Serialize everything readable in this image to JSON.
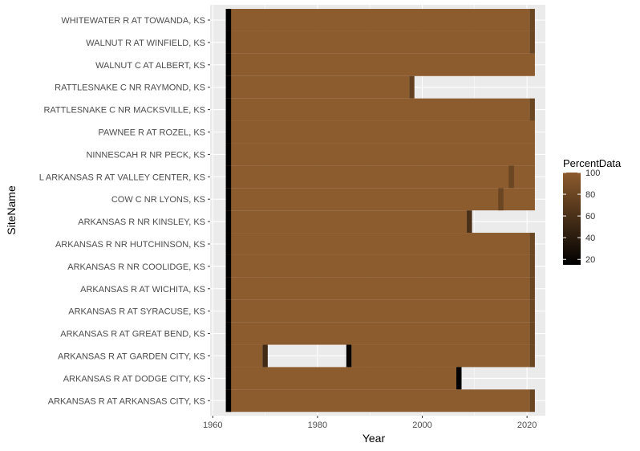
{
  "chart_data": {
    "type": "heatmap",
    "xlabel": "Year",
    "ylabel": "SiteName",
    "xlim": [
      1959.5,
      2023.5
    ],
    "xticks": [
      1960,
      1980,
      2000,
      2020
    ],
    "grid": true,
    "legend": {
      "title": "PercentData",
      "placement": "right",
      "ticks": [
        100,
        80,
        60,
        40,
        20
      ],
      "range": [
        15,
        100
      ]
    },
    "color_scale": {
      "low": "#000000",
      "high": "#8c5b2e"
    },
    "sites": [
      "WHITEWATER R AT TOWANDA, KS",
      "WALNUT R AT WINFIELD, KS",
      "WALNUT C AT ALBERT, KS",
      "RATTLESNAKE C NR RAYMOND, KS",
      "RATTLESNAKE C NR MACKSVILLE, KS",
      "PAWNEE R AT ROZEL, KS",
      "NINNESCAH R NR PECK, KS",
      "L ARKANSAS R AT VALLEY CENTER, KS",
      "COW C NR LYONS, KS",
      "ARKANSAS R NR KINSLEY, KS",
      "ARKANSAS R NR HUTCHINSON, KS",
      "ARKANSAS R NR COOLIDGE, KS",
      "ARKANSAS R AT WICHITA, KS",
      "ARKANSAS R AT SYRACUSE, KS",
      "ARKANSAS R AT GREAT BEND, KS",
      "ARKANSAS R AT GARDEN CITY, KS",
      "ARKANSAS R AT DODGE CITY, KS",
      "ARKANSAS R AT ARKANSAS CITY, KS"
    ],
    "series": [
      {
        "segments": [
          {
            "start": 1963,
            "end": 2020,
            "value": 100
          }
        ],
        "cells": [
          {
            "year": 1963,
            "value": 15
          },
          {
            "year": 2021,
            "value": 80
          }
        ]
      },
      {
        "segments": [
          {
            "start": 1963,
            "end": 2020,
            "value": 100
          }
        ],
        "cells": [
          {
            "year": 1963,
            "value": 15
          },
          {
            "year": 2021,
            "value": 80
          }
        ]
      },
      {
        "segments": [
          {
            "start": 1963,
            "end": 2021,
            "value": 100
          }
        ],
        "cells": [
          {
            "year": 1963,
            "value": 15
          }
        ]
      },
      {
        "segments": [
          {
            "start": 1963,
            "end": 1997,
            "value": 100
          }
        ],
        "cells": [
          {
            "year": 1963,
            "value": 15
          },
          {
            "year": 1998,
            "value": 75
          }
        ]
      },
      {
        "segments": [
          {
            "start": 1963,
            "end": 2020,
            "value": 100
          }
        ],
        "cells": [
          {
            "year": 1963,
            "value": 15
          },
          {
            "year": 2021,
            "value": 80
          }
        ]
      },
      {
        "segments": [
          {
            "start": 1963,
            "end": 2021,
            "value": 100
          }
        ],
        "cells": [
          {
            "year": 1963,
            "value": 15
          }
        ]
      },
      {
        "segments": [
          {
            "start": 1963,
            "end": 2021,
            "value": 100
          }
        ],
        "cells": [
          {
            "year": 1963,
            "value": 15
          }
        ]
      },
      {
        "segments": [
          {
            "start": 1963,
            "end": 2021,
            "value": 100
          }
        ],
        "cells": [
          {
            "year": 1963,
            "value": 15
          },
          {
            "year": 2017,
            "value": 80
          }
        ]
      },
      {
        "segments": [
          {
            "start": 1963,
            "end": 2021,
            "value": 100
          }
        ],
        "cells": [
          {
            "year": 1963,
            "value": 15
          },
          {
            "year": 2015,
            "value": 80
          }
        ]
      },
      {
        "segments": [
          {
            "start": 1963,
            "end": 2008,
            "value": 100
          }
        ],
        "cells": [
          {
            "year": 1963,
            "value": 15
          },
          {
            "year": 2009,
            "value": 60
          }
        ]
      },
      {
        "segments": [
          {
            "start": 1963,
            "end": 2020,
            "value": 100
          }
        ],
        "cells": [
          {
            "year": 1963,
            "value": 15
          },
          {
            "year": 2021,
            "value": 80
          }
        ]
      },
      {
        "segments": [
          {
            "start": 1963,
            "end": 2020,
            "value": 100
          }
        ],
        "cells": [
          {
            "year": 1963,
            "value": 15
          },
          {
            "year": 2021,
            "value": 80
          }
        ]
      },
      {
        "segments": [
          {
            "start": 1963,
            "end": 2020,
            "value": 100
          }
        ],
        "cells": [
          {
            "year": 1963,
            "value": 15
          },
          {
            "year": 2021,
            "value": 80
          }
        ]
      },
      {
        "segments": [
          {
            "start": 1963,
            "end": 2020,
            "value": 100
          }
        ],
        "cells": [
          {
            "year": 1963,
            "value": 15
          },
          {
            "year": 2021,
            "value": 80
          }
        ]
      },
      {
        "segments": [
          {
            "start": 1963,
            "end": 2020,
            "value": 100
          }
        ],
        "cells": [
          {
            "year": 1963,
            "value": 15
          },
          {
            "year": 2021,
            "value": 80
          }
        ]
      },
      {
        "segments": [
          {
            "start": 1963,
            "end": 1969,
            "value": 100
          },
          {
            "start": 1987,
            "end": 2020,
            "value": 100
          }
        ],
        "cells": [
          {
            "year": 1963,
            "value": 15
          },
          {
            "year": 1970,
            "value": 55
          },
          {
            "year": 1986,
            "value": 20
          },
          {
            "year": 2021,
            "value": 80
          }
        ]
      },
      {
        "segments": [
          {
            "start": 1963,
            "end": 2006,
            "value": 100
          }
        ],
        "cells": [
          {
            "year": 1963,
            "value": 15
          },
          {
            "year": 2007,
            "value": 15
          }
        ]
      },
      {
        "segments": [
          {
            "start": 1963,
            "end": 2020,
            "value": 100
          }
        ],
        "cells": [
          {
            "year": 1963,
            "value": 15
          },
          {
            "year": 2021,
            "value": 80
          }
        ]
      }
    ]
  }
}
